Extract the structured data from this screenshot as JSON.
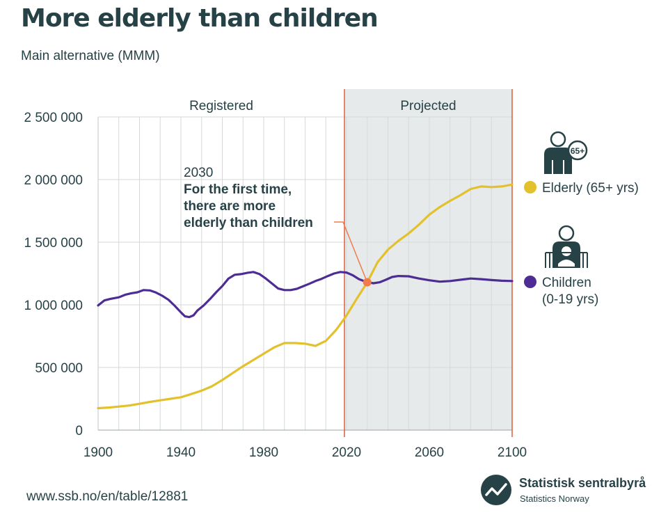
{
  "title": "More elderly than children",
  "subtitle": "Main alternative (MMM)",
  "source": "www.ssb.no/en/table/12881",
  "logo": {
    "name": "Statistisk sentralbyrå",
    "sub": "Statistics Norway",
    "icon": "ssb-logo-icon"
  },
  "colors": {
    "elderly": "#e2c12d",
    "children": "#4d2d93",
    "marker": "#f07c4b",
    "boundary": "#e05a3c",
    "projected_bg": "#e6eaea",
    "grid": "#d6d9d9",
    "text": "#274247"
  },
  "chart_data": {
    "type": "line",
    "xlim": [
      1900,
      2100
    ],
    "ylim": [
      0,
      2500000
    ],
    "x_ticks": [
      "1900",
      "1940",
      "1980",
      "2020",
      "2060",
      "2100"
    ],
    "y_ticks": [
      "0",
      "500 000",
      "1 000 000",
      "1 500 000",
      "2 000 000",
      "2 500 000"
    ],
    "regions": [
      {
        "label": "Registered",
        "from": 1900,
        "to": 2019
      },
      {
        "label": "Projected",
        "from": 2019,
        "to": 2100
      }
    ],
    "annotation": {
      "x": 2030,
      "y": 1180000,
      "year": "2030",
      "lines": [
        "For the first time,",
        "there are more",
        "elderly than children"
      ]
    },
    "series": [
      {
        "name": "Elderly",
        "legend": [
          "Elderly (65+ yrs)"
        ],
        "icon": "elderly-person-icon",
        "badge": "65+",
        "key": "elderly",
        "points": [
          [
            1900,
            175000
          ],
          [
            1905,
            180000
          ],
          [
            1910,
            188000
          ],
          [
            1915,
            196000
          ],
          [
            1920,
            210000
          ],
          [
            1925,
            225000
          ],
          [
            1930,
            238000
          ],
          [
            1935,
            250000
          ],
          [
            1940,
            262000
          ],
          [
            1945,
            288000
          ],
          [
            1950,
            315000
          ],
          [
            1955,
            350000
          ],
          [
            1960,
            400000
          ],
          [
            1965,
            455000
          ],
          [
            1970,
            510000
          ],
          [
            1975,
            560000
          ],
          [
            1980,
            610000
          ],
          [
            1985,
            660000
          ],
          [
            1990,
            695000
          ],
          [
            1995,
            695000
          ],
          [
            2000,
            690000
          ],
          [
            2005,
            672000
          ],
          [
            2010,
            712000
          ],
          [
            2015,
            800000
          ],
          [
            2020,
            915000
          ],
          [
            2025,
            1050000
          ],
          [
            2030,
            1180000
          ],
          [
            2035,
            1340000
          ],
          [
            2040,
            1440000
          ],
          [
            2045,
            1510000
          ],
          [
            2050,
            1570000
          ],
          [
            2055,
            1640000
          ],
          [
            2060,
            1720000
          ],
          [
            2065,
            1780000
          ],
          [
            2070,
            1830000
          ],
          [
            2075,
            1875000
          ],
          [
            2080,
            1925000
          ],
          [
            2085,
            1945000
          ],
          [
            2090,
            1940000
          ],
          [
            2095,
            1945000
          ],
          [
            2100,
            1960000
          ]
        ]
      },
      {
        "name": "Children",
        "legend": [
          "Children",
          "(0-19 yrs)"
        ],
        "icon": "child-icon",
        "key": "children",
        "points": [
          [
            1900,
            995000
          ],
          [
            1903,
            1035000
          ],
          [
            1906,
            1048000
          ],
          [
            1910,
            1060000
          ],
          [
            1913,
            1080000
          ],
          [
            1916,
            1092000
          ],
          [
            1919,
            1100000
          ],
          [
            1922,
            1118000
          ],
          [
            1925,
            1115000
          ],
          [
            1928,
            1098000
          ],
          [
            1931,
            1072000
          ],
          [
            1934,
            1040000
          ],
          [
            1937,
            992000
          ],
          [
            1940,
            940000
          ],
          [
            1942,
            908000
          ],
          [
            1944,
            902000
          ],
          [
            1946,
            915000
          ],
          [
            1948,
            955000
          ],
          [
            1951,
            995000
          ],
          [
            1954,
            1045000
          ],
          [
            1957,
            1100000
          ],
          [
            1960,
            1150000
          ],
          [
            1963,
            1210000
          ],
          [
            1966,
            1240000
          ],
          [
            1969,
            1245000
          ],
          [
            1972,
            1255000
          ],
          [
            1975,
            1262000
          ],
          [
            1978,
            1245000
          ],
          [
            1981,
            1210000
          ],
          [
            1984,
            1170000
          ],
          [
            1987,
            1130000
          ],
          [
            1990,
            1118000
          ],
          [
            1993,
            1118000
          ],
          [
            1996,
            1128000
          ],
          [
            1999,
            1148000
          ],
          [
            2002,
            1168000
          ],
          [
            2005,
            1190000
          ],
          [
            2008,
            1208000
          ],
          [
            2011,
            1230000
          ],
          [
            2014,
            1250000
          ],
          [
            2017,
            1262000
          ],
          [
            2020,
            1258000
          ],
          [
            2023,
            1236000
          ],
          [
            2026,
            1205000
          ],
          [
            2030,
            1180000
          ],
          [
            2033,
            1172000
          ],
          [
            2036,
            1180000
          ],
          [
            2039,
            1200000
          ],
          [
            2042,
            1222000
          ],
          [
            2045,
            1230000
          ],
          [
            2050,
            1228000
          ],
          [
            2055,
            1210000
          ],
          [
            2060,
            1196000
          ],
          [
            2065,
            1185000
          ],
          [
            2070,
            1190000
          ],
          [
            2075,
            1200000
          ],
          [
            2080,
            1210000
          ],
          [
            2085,
            1205000
          ],
          [
            2090,
            1198000
          ],
          [
            2095,
            1192000
          ],
          [
            2100,
            1190000
          ]
        ]
      }
    ]
  }
}
